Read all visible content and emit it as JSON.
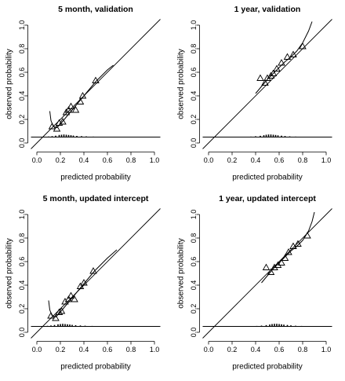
{
  "chart_data": [
    {
      "type": "scatter",
      "title": "5 month, validation",
      "xlabel": "predicted probability",
      "ylabel": "observed probability",
      "xlim": [
        -0.05,
        1.05
      ],
      "ylim": [
        -0.05,
        1.05
      ],
      "xticks": [
        {
          "value": 0,
          "label": "0.0"
        },
        0.2,
        0.4,
        0.6,
        0.8,
        {
          "value": 1,
          "label": "1.0"
        }
      ],
      "yticks": [
        {
          "value": 0,
          "label": "0.0"
        },
        0.2,
        0.4,
        0.6,
        0.8,
        {
          "value": 1,
          "label": "1.0"
        }
      ],
      "hline": 0.05,
      "series": [
        {
          "marker": "triangle",
          "color": "#000000",
          "x": [
            0.13,
            0.17,
            0.19,
            0.22,
            0.25,
            0.27,
            0.29,
            0.33,
            0.37,
            0.39,
            0.5
          ],
          "y": [
            0.14,
            0.12,
            0.17,
            0.18,
            0.26,
            0.28,
            0.31,
            0.28,
            0.35,
            0.4,
            0.53
          ]
        },
        {
          "marker": "line",
          "color": "#000000",
          "x": [
            0.11,
            0.12,
            0.14,
            0.17,
            0.2,
            0.25,
            0.3,
            0.35,
            0.4,
            0.45,
            0.5,
            0.55,
            0.6,
            0.65
          ],
          "y": [
            0.27,
            0.19,
            0.14,
            0.13,
            0.16,
            0.22,
            0.28,
            0.34,
            0.4,
            0.46,
            0.52,
            0.57,
            0.62,
            0.66
          ]
        }
      ],
      "distribution": {
        "x": [
          0.1,
          0.13,
          0.16,
          0.19,
          0.21,
          0.23,
          0.25,
          0.27,
          0.29,
          0.31,
          0.34,
          0.38,
          0.42,
          0.48,
          0.55
        ],
        "values": [
          0.005,
          0.008,
          0.012,
          0.018,
          0.02,
          0.022,
          0.02,
          0.018,
          0.016,
          0.013,
          0.01,
          0.008,
          0.006,
          0.004,
          0.003
        ]
      }
    },
    {
      "type": "scatter",
      "title": "1 year, validation",
      "xlabel": "predicted probability",
      "ylabel": "observed probability",
      "xlim": [
        -0.05,
        1.05
      ],
      "ylim": [
        -0.05,
        1.05
      ],
      "xticks": [
        {
          "value": 0,
          "label": "0.0"
        },
        0.2,
        0.4,
        0.6,
        0.8,
        {
          "value": 1,
          "label": "1.0"
        }
      ],
      "yticks": [
        {
          "value": 0,
          "label": "0.0"
        },
        0.2,
        0.4,
        0.6,
        0.8,
        {
          "value": 1,
          "label": "1.0"
        }
      ],
      "hline": 0.05,
      "series": [
        {
          "marker": "triangle",
          "color": "#000000",
          "x": [
            0.44,
            0.48,
            0.5,
            0.53,
            0.55,
            0.58,
            0.62,
            0.67,
            0.72,
            0.8
          ],
          "y": [
            0.55,
            0.51,
            0.55,
            0.57,
            0.59,
            0.63,
            0.68,
            0.73,
            0.75,
            0.82
          ]
        },
        {
          "marker": "line",
          "color": "#000000",
          "x": [
            0.4,
            0.45,
            0.5,
            0.55,
            0.6,
            0.65,
            0.7,
            0.75,
            0.8,
            0.85,
            0.88
          ],
          "y": [
            0.42,
            0.48,
            0.54,
            0.59,
            0.64,
            0.69,
            0.73,
            0.78,
            0.85,
            0.95,
            1.03
          ]
        }
      ],
      "distribution": {
        "x": [
          0.36,
          0.4,
          0.44,
          0.47,
          0.49,
          0.51,
          0.53,
          0.55,
          0.57,
          0.59,
          0.62,
          0.65,
          0.69,
          0.74,
          0.8
        ],
        "values": [
          0.004,
          0.007,
          0.011,
          0.016,
          0.02,
          0.022,
          0.022,
          0.02,
          0.018,
          0.015,
          0.012,
          0.009,
          0.006,
          0.004,
          0.003
        ]
      }
    },
    {
      "type": "scatter",
      "title": "5 month, updated intercept",
      "xlabel": "predicted probability",
      "ylabel": "observed probability",
      "xlim": [
        -0.05,
        1.05
      ],
      "ylim": [
        -0.05,
        1.05
      ],
      "xticks": [
        {
          "value": 0,
          "label": "0.0"
        },
        0.2,
        0.4,
        0.6,
        0.8,
        {
          "value": 1,
          "label": "1.0"
        }
      ],
      "yticks": [
        {
          "value": 0,
          "label": "0.0"
        },
        0.2,
        0.4,
        0.6,
        0.8,
        {
          "value": 1,
          "label": "1.0"
        }
      ],
      "hline": 0.05,
      "series": [
        {
          "marker": "triangle",
          "color": "#000000",
          "x": [
            0.12,
            0.16,
            0.19,
            0.21,
            0.24,
            0.27,
            0.29,
            0.32,
            0.37,
            0.4,
            0.48
          ],
          "y": [
            0.14,
            0.12,
            0.17,
            0.18,
            0.26,
            0.28,
            0.31,
            0.28,
            0.39,
            0.42,
            0.52
          ]
        },
        {
          "marker": "line",
          "color": "#000000",
          "x": [
            0.1,
            0.11,
            0.13,
            0.16,
            0.19,
            0.24,
            0.29,
            0.34,
            0.39,
            0.44,
            0.49,
            0.54,
            0.6,
            0.68
          ],
          "y": [
            0.27,
            0.19,
            0.14,
            0.13,
            0.16,
            0.22,
            0.28,
            0.34,
            0.4,
            0.46,
            0.52,
            0.57,
            0.63,
            0.7
          ]
        }
      ],
      "distribution": {
        "x": [
          0.09,
          0.12,
          0.15,
          0.18,
          0.2,
          0.22,
          0.24,
          0.26,
          0.28,
          0.3,
          0.33,
          0.37,
          0.41,
          0.47,
          0.54
        ],
        "values": [
          0.005,
          0.008,
          0.012,
          0.018,
          0.02,
          0.022,
          0.02,
          0.018,
          0.016,
          0.013,
          0.01,
          0.008,
          0.006,
          0.004,
          0.003
        ]
      }
    },
    {
      "type": "scatter",
      "title": "1 year, updated intercept",
      "xlabel": "predicted probability",
      "ylabel": "observed probability",
      "xlim": [
        -0.05,
        1.05
      ],
      "ylim": [
        -0.05,
        1.05
      ],
      "xticks": [
        {
          "value": 0,
          "label": "0.0"
        },
        0.2,
        0.4,
        0.6,
        0.8,
        {
          "value": 1,
          "label": "1.0"
        }
      ],
      "yticks": [
        {
          "value": 0,
          "label": "0.0"
        },
        0.2,
        0.4,
        0.6,
        0.8,
        {
          "value": 1,
          "label": "1.0"
        }
      ],
      "hline": 0.05,
      "series": [
        {
          "marker": "triangle",
          "color": "#000000",
          "x": [
            0.49,
            0.53,
            0.56,
            0.59,
            0.62,
            0.65,
            0.68,
            0.72,
            0.76,
            0.84
          ],
          "y": [
            0.55,
            0.51,
            0.55,
            0.57,
            0.59,
            0.63,
            0.68,
            0.73,
            0.75,
            0.82
          ]
        },
        {
          "marker": "line",
          "color": "#000000",
          "x": [
            0.45,
            0.5,
            0.55,
            0.6,
            0.65,
            0.7,
            0.75,
            0.8,
            0.85,
            0.88,
            0.9
          ],
          "y": [
            0.42,
            0.48,
            0.54,
            0.59,
            0.64,
            0.69,
            0.73,
            0.78,
            0.86,
            0.94,
            1.02
          ]
        }
      ],
      "distribution": {
        "x": [
          0.41,
          0.45,
          0.49,
          0.52,
          0.54,
          0.56,
          0.58,
          0.6,
          0.62,
          0.64,
          0.67,
          0.7,
          0.74,
          0.79,
          0.85
        ],
        "values": [
          0.004,
          0.007,
          0.011,
          0.016,
          0.02,
          0.022,
          0.022,
          0.02,
          0.018,
          0.015,
          0.012,
          0.009,
          0.006,
          0.004,
          0.003
        ]
      }
    }
  ]
}
